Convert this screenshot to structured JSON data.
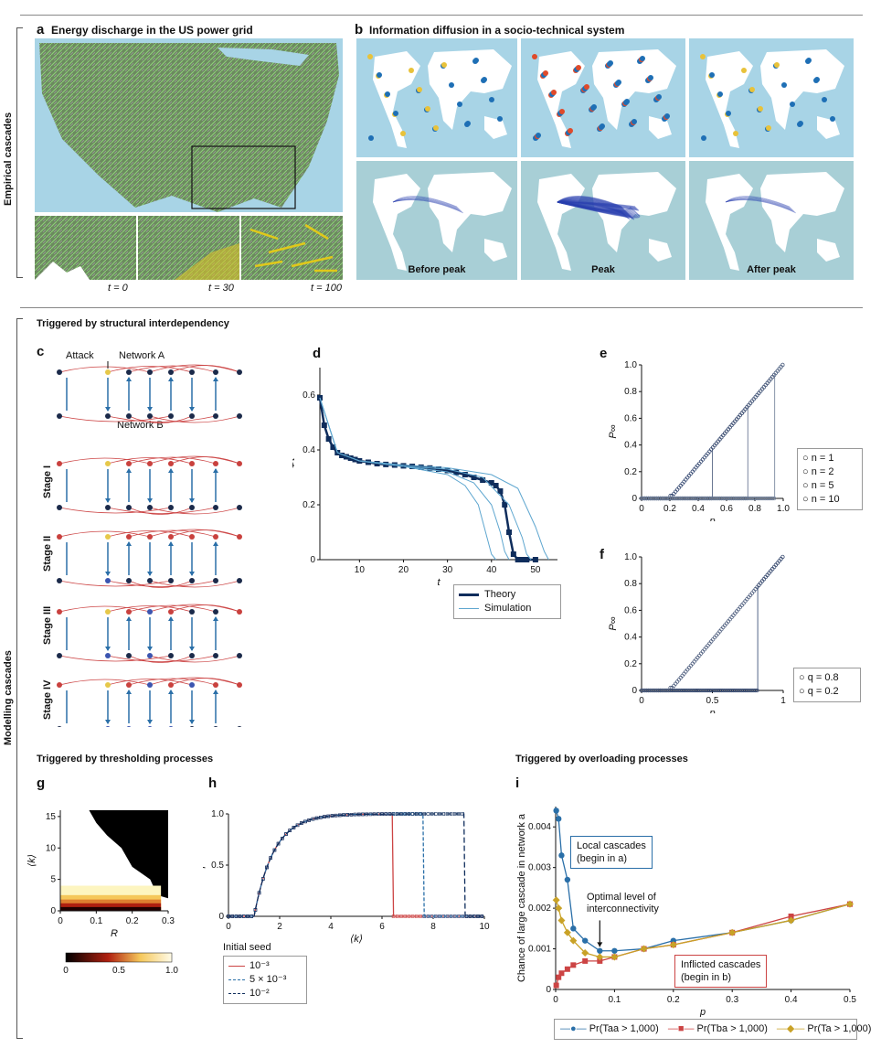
{
  "header": {
    "panel_a": {
      "label": "a",
      "title": "Energy discharge in the US power grid",
      "t_labels": [
        "t = 0",
        "t = 30",
        "t = 100"
      ]
    },
    "panel_b": {
      "label": "b",
      "title": "Information diffusion in a socio-technical system",
      "captions": [
        "Before peak",
        "Peak",
        "After peak"
      ]
    },
    "side_empirical": "Empirical cascades",
    "side_modelling": "Modelling cascades"
  },
  "sections": {
    "structural": "Triggered by structural interdependency",
    "thresholding": "Triggered by thresholding processes",
    "overloading": "Triggered by overloading processes"
  },
  "panel_c": {
    "label": "c",
    "attack": "Attack",
    "network_a": "Network A",
    "network_b": "Network B",
    "stages": [
      "Stage I",
      "Stage II",
      "Stage III",
      "Stage IV"
    ]
  },
  "colors": {
    "navy": "#0f2d5c",
    "blue": "#2a6fa8",
    "light_blue": "#5ea6cf",
    "red": "#cc4444",
    "gold": "#c9a227",
    "map_sea": "#a8d4e6",
    "node_red": "#c9413e",
    "node_dark": "#1b2a4a",
    "node_yellow": "#e6c84a",
    "node_blue": "#3b55b0"
  },
  "chart_data": [
    {
      "id": "d",
      "label": "d",
      "type": "line",
      "xlabel": "t",
      "ylabel": "Φt",
      "xlim": [
        1,
        55
      ],
      "ylim": [
        0,
        0.7
      ],
      "xticks": [
        "10",
        "20",
        "30",
        "40",
        "50"
      ],
      "yticks": [
        "0",
        "0.2",
        "0.4",
        "0.6"
      ],
      "series": [
        {
          "name": "Theory",
          "x": [
            1,
            2,
            3,
            4,
            5,
            6,
            7,
            8,
            9,
            10,
            12,
            14,
            16,
            18,
            20,
            22,
            24,
            26,
            28,
            30,
            32,
            34,
            36,
            38,
            40,
            41,
            42,
            43,
            44,
            45,
            46,
            47,
            48,
            50
          ],
          "y": [
            0.59,
            0.49,
            0.44,
            0.41,
            0.39,
            0.38,
            0.375,
            0.37,
            0.365,
            0.36,
            0.355,
            0.35,
            0.347,
            0.345,
            0.342,
            0.34,
            0.337,
            0.334,
            0.33,
            0.325,
            0.318,
            0.31,
            0.3,
            0.29,
            0.28,
            0.27,
            0.25,
            0.2,
            0.1,
            0.02,
            0,
            0,
            0,
            0
          ]
        },
        {
          "name": "Simulation",
          "x": [
            1,
            5,
            10,
            20,
            30,
            34,
            37,
            39,
            40,
            41
          ],
          "y": [
            0.59,
            0.39,
            0.36,
            0.34,
            0.31,
            0.27,
            0.2,
            0.08,
            0.02,
            0
          ]
        },
        {
          "name": "",
          "x": [
            1,
            5,
            10,
            20,
            30,
            36,
            40,
            42,
            43,
            44
          ],
          "y": [
            0.59,
            0.39,
            0.36,
            0.34,
            0.32,
            0.28,
            0.2,
            0.1,
            0.03,
            0
          ]
        },
        {
          "name": "",
          "x": [
            1,
            5,
            10,
            20,
            30,
            38,
            44,
            47,
            48,
            49
          ],
          "y": [
            0.59,
            0.39,
            0.36,
            0.34,
            0.33,
            0.3,
            0.2,
            0.08,
            0.02,
            0
          ]
        },
        {
          "name": "",
          "x": [
            1,
            5,
            10,
            20,
            30,
            40,
            46,
            50,
            52,
            53
          ],
          "y": [
            0.59,
            0.39,
            0.36,
            0.345,
            0.335,
            0.31,
            0.26,
            0.12,
            0.03,
            0
          ]
        }
      ],
      "legend": [
        "Theory",
        "Simulation"
      ]
    },
    {
      "id": "e",
      "label": "e",
      "type": "scatter",
      "xlabel": "p",
      "ylabel": "P∞",
      "xlim": [
        0,
        1
      ],
      "ylim": [
        0,
        1
      ],
      "xticks": [
        "0",
        "0.2",
        "0.4",
        "0.6",
        "0.8",
        "1.0"
      ],
      "yticks": [
        "0",
        "0.2",
        "0.4",
        "0.6",
        "0.8",
        "1.0"
      ],
      "series": [
        {
          "name": "n = 1",
          "jump": 0.2,
          "end": 0.98
        },
        {
          "name": "n = 2",
          "jump": 0.5,
          "end": 0.98
        },
        {
          "name": "n = 5",
          "jump": 0.75,
          "end": 0.98
        },
        {
          "name": "n = 10",
          "jump": 0.94,
          "end": 0.88
        }
      ]
    },
    {
      "id": "f",
      "label": "f",
      "type": "scatter",
      "xlabel": "p",
      "ylabel": "P∞",
      "xlim": [
        0,
        1
      ],
      "ylim": [
        0,
        1
      ],
      "xticks": [
        "0",
        "0.5",
        "1"
      ],
      "yticks": [
        "0",
        "0.2",
        "0.4",
        "0.6",
        "0.8",
        "1.0"
      ],
      "series": [
        {
          "name": "q = 0.8",
          "jump": 0.82
        },
        {
          "name": "q = 0.2",
          "jump": 0.2
        }
      ]
    },
    {
      "id": "g",
      "label": "g",
      "type": "heatmap",
      "xlabel": "R",
      "ylabel": "⟨k⟩",
      "xticks": [
        "0",
        "0.1",
        "0.2",
        "0.3"
      ],
      "yticks": [
        "0",
        "5",
        "10",
        "15"
      ],
      "colorbar": [
        "0",
        "0.5",
        "1.0"
      ]
    },
    {
      "id": "h",
      "label": "h",
      "type": "line",
      "xlabel": "⟨k⟩",
      "ylabel": "ρ",
      "xlim": [
        0,
        10
      ],
      "ylim": [
        0,
        1
      ],
      "xticks": [
        "0",
        "2",
        "4",
        "6",
        "8",
        "10"
      ],
      "yticks": [
        "0",
        "0.5",
        "1.0"
      ],
      "legend_title": "Initial seed",
      "series": [
        {
          "name": "10⁻³",
          "drop": 6.4
        },
        {
          "name": "5 × 10⁻³",
          "drop": 7.6
        },
        {
          "name": "10⁻²",
          "drop": 9.2
        }
      ]
    },
    {
      "id": "i",
      "label": "i",
      "type": "line",
      "xlabel": "p",
      "ylabel": "Chance of large cascade in network a",
      "xlim": [
        0,
        0.5
      ],
      "ylim": [
        0,
        0.0045
      ],
      "xticks": [
        "0",
        "0.1",
        "0.2",
        "0.3",
        "0.4",
        "0.5"
      ],
      "yticks": [
        "0",
        "0.001",
        "0.002",
        "0.003",
        "0.004"
      ],
      "series": [
        {
          "name": "Pr(Taa > 1,000)",
          "x": [
            0.001,
            0.005,
            0.01,
            0.02,
            0.03,
            0.05,
            0.075,
            0.1,
            0.15,
            0.2,
            0.3,
            0.4,
            0.5
          ],
          "y": [
            0.0044,
            0.0042,
            0.0033,
            0.0027,
            0.0015,
            0.0012,
            0.00095,
            0.00095,
            0.001,
            0.0012,
            0.0014,
            0.0017,
            0.0021
          ]
        },
        {
          "name": "Pr(Tba > 1,000)",
          "x": [
            0.001,
            0.005,
            0.01,
            0.02,
            0.03,
            0.05,
            0.075,
            0.1,
            0.15,
            0.2,
            0.3,
            0.4,
            0.5
          ],
          "y": [
            0.0001,
            0.0003,
            0.0004,
            0.0005,
            0.0006,
            0.0007,
            0.0007,
            0.0008,
            0.001,
            0.0011,
            0.0014,
            0.0018,
            0.0021
          ]
        },
        {
          "name": "Pr(Ta > 1,000)",
          "x": [
            0.001,
            0.005,
            0.01,
            0.02,
            0.03,
            0.05,
            0.075,
            0.1,
            0.15,
            0.2,
            0.3,
            0.4,
            0.5
          ],
          "y": [
            0.0022,
            0.002,
            0.0017,
            0.0014,
            0.0012,
            0.0009,
            0.0008,
            0.0008,
            0.001,
            0.0011,
            0.0014,
            0.0017,
            0.0021
          ]
        }
      ],
      "annotations": {
        "local": [
          "Local cascades",
          "(begin in a)"
        ],
        "optimal": [
          "Optimal level of",
          "interconnectivity"
        ],
        "inflicted": [
          "Inflicted cascades",
          "(begin in b)"
        ]
      }
    }
  ]
}
